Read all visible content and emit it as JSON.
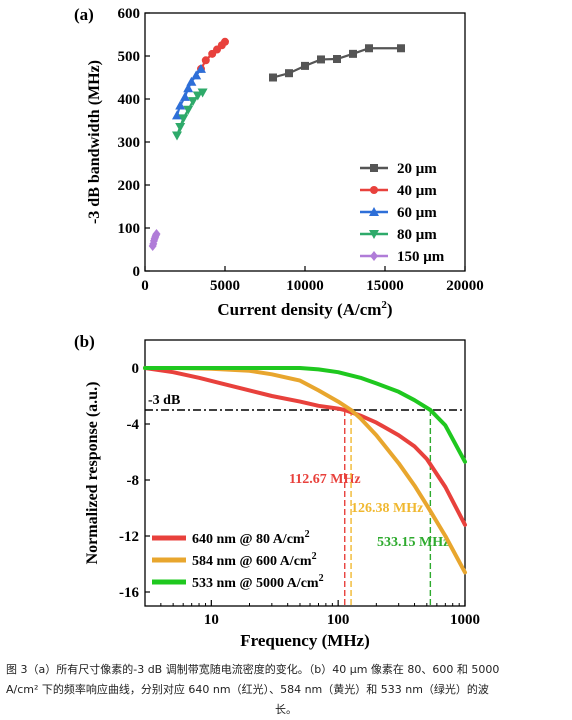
{
  "chart_data": [
    {
      "type": "scatter",
      "panel_label": "(a)",
      "xlabel": "Current density (A/cm",
      "xlabel_sup": "2",
      "xlabel_end": ")",
      "ylabel": "-3 dB bandwidth (MHz)",
      "xlim": [
        0,
        20000
      ],
      "ylim": [
        0,
        600
      ],
      "xticks": [
        0,
        5000,
        10000,
        15000,
        20000
      ],
      "yticks": [
        0,
        100,
        200,
        300,
        400,
        500,
        600
      ],
      "legend_position": "bottom-right",
      "series": [
        {
          "name": "20 μm",
          "color": "#555555",
          "marker": "square",
          "x": [
            8000,
            9000,
            10000,
            11000,
            12000,
            13000,
            14000,
            16000
          ],
          "y": [
            450,
            460,
            477,
            492,
            493,
            505,
            518,
            518
          ]
        },
        {
          "name": "40 μm",
          "color": "#e8413c",
          "marker": "circle",
          "x": [
            3500,
            3800,
            4200,
            4500,
            4800,
            5000
          ],
          "y": [
            470,
            490,
            505,
            515,
            525,
            533
          ]
        },
        {
          "name": "60 μm",
          "color": "#2e6fd8",
          "marker": "triangle-up",
          "x": [
            2000,
            2200,
            2500,
            2700,
            2900,
            3200,
            3500
          ],
          "y": [
            362,
            385,
            405,
            425,
            440,
            455,
            470
          ]
        },
        {
          "name": "80 μm",
          "color": "#2eaa6a",
          "marker": "triangle-down",
          "x": [
            2000,
            2200,
            2400,
            2700,
            3000,
            3300,
            3600
          ],
          "y": [
            315,
            335,
            355,
            375,
            395,
            408,
            415
          ]
        },
        {
          "name": "150 μm",
          "color": "#b07cd8",
          "marker": "diamond",
          "x": [
            480,
            520,
            560,
            600,
            640,
            680,
            720
          ],
          "y": [
            58,
            63,
            70,
            75,
            79,
            83,
            86
          ]
        }
      ]
    },
    {
      "type": "line",
      "panel_label": "(b)",
      "xlabel": "Frequency (MHz)",
      "ylabel": "Normalized response (a.u.)",
      "xscale": "log",
      "xlim": [
        3,
        1000
      ],
      "ylim": [
        -17,
        2
      ],
      "xticks": [
        10,
        100,
        1000
      ],
      "yticks": [
        0,
        -4,
        -8,
        -12,
        -16
      ],
      "legend_position": "bottom-left",
      "threshold": {
        "y": -3,
        "label": "-3 dB"
      },
      "annotations": [
        {
          "text": "112.67 MHz",
          "x": 112.67,
          "color": "#e8413c"
        },
        {
          "text": "126.38 MHz",
          "x": 126.38,
          "color": "#f0b830"
        },
        {
          "text": "533.15 MHz",
          "x": 533.15,
          "color": "#2eaa2e"
        }
      ],
      "series": [
        {
          "name": "640 nm @ 80 A/cm",
          "sup": "2",
          "color": "#e8413c",
          "x": [
            3,
            5,
            8,
            12,
            20,
            30,
            50,
            70,
            100,
            112.67,
            150,
            200,
            300,
            400,
            500,
            700,
            1000
          ],
          "y": [
            0,
            -0.3,
            -0.7,
            -1.1,
            -1.6,
            -2.0,
            -2.4,
            -2.7,
            -2.9,
            -3.0,
            -3.4,
            -3.9,
            -4.8,
            -5.6,
            -6.5,
            -8.5,
            -11.2
          ]
        },
        {
          "name": "584 nm @ 600 A/cm",
          "sup": "2",
          "color": "#e8a62e",
          "x": [
            3,
            5,
            10,
            20,
            30,
            50,
            70,
            100,
            126.38,
            150,
            200,
            300,
            400,
            500,
            700,
            1000
          ],
          "y": [
            0,
            0,
            -0.05,
            -0.2,
            -0.45,
            -0.9,
            -1.6,
            -2.4,
            -3.0,
            -3.6,
            -4.8,
            -6.8,
            -8.4,
            -9.8,
            -12.0,
            -14.6
          ]
        },
        {
          "name": "533 nm @ 5000 A/cm",
          "sup": "2",
          "color": "#1fc81f",
          "x": [
            3,
            10,
            30,
            50,
            70,
            100,
            150,
            200,
            300,
            400,
            533.15,
            700,
            1000
          ],
          "y": [
            0,
            0,
            0,
            0,
            -0.1,
            -0.3,
            -0.7,
            -1.1,
            -1.7,
            -2.3,
            -3.0,
            -4.1,
            -6.7
          ]
        }
      ]
    }
  ],
  "caption": {
    "line1": "图 3（a）所有尺寸像素的-3 dB 调制带宽随电流密度的变化。（b）40 μm 像素在 80、600 和 5000",
    "line2": "A/cm² 下的频率响应曲线，分别对应 640 nm（红光）、584 nm（黄光）和 533 nm（绿光）的波",
    "line3": "长。"
  }
}
